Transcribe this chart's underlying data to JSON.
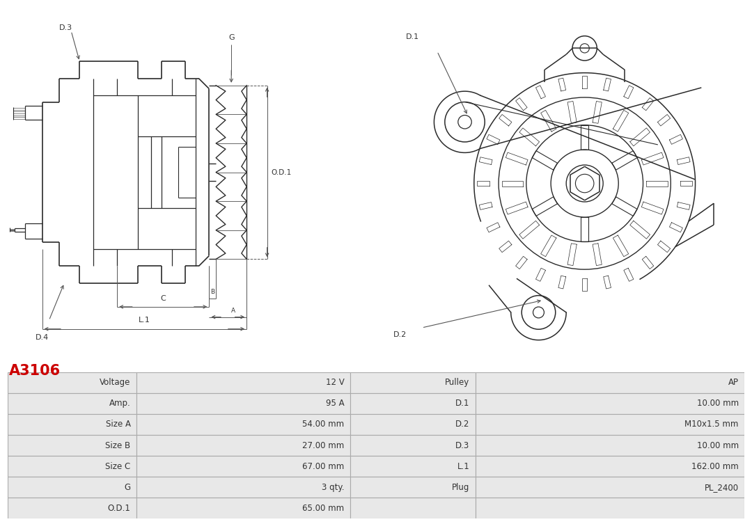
{
  "title": "A3106",
  "title_color": "#cc0000",
  "bg_color": "#ffffff",
  "table_rows": [
    [
      "Voltage",
      "12 V",
      "Pulley",
      "AP"
    ],
    [
      "Amp.",
      "95 A",
      "D.1",
      "10.00 mm"
    ],
    [
      "Size A",
      "54.00 mm",
      "D.2",
      "M10x1.5 mm"
    ],
    [
      "Size B",
      "27.00 mm",
      "D.3",
      "10.00 mm"
    ],
    [
      "Size C",
      "67.00 mm",
      "L.1",
      "162.00 mm"
    ],
    [
      "G",
      "3 qty.",
      "Plug",
      "PL_2400"
    ],
    [
      "O.D.1",
      "65.00 mm",
      "",
      ""
    ]
  ],
  "line_color": "#2a2a2a",
  "dim_color": "#555555",
  "text_color": "#333333",
  "bg_color_cell": "#e8e8e8",
  "border_color": "#aaaaaa"
}
